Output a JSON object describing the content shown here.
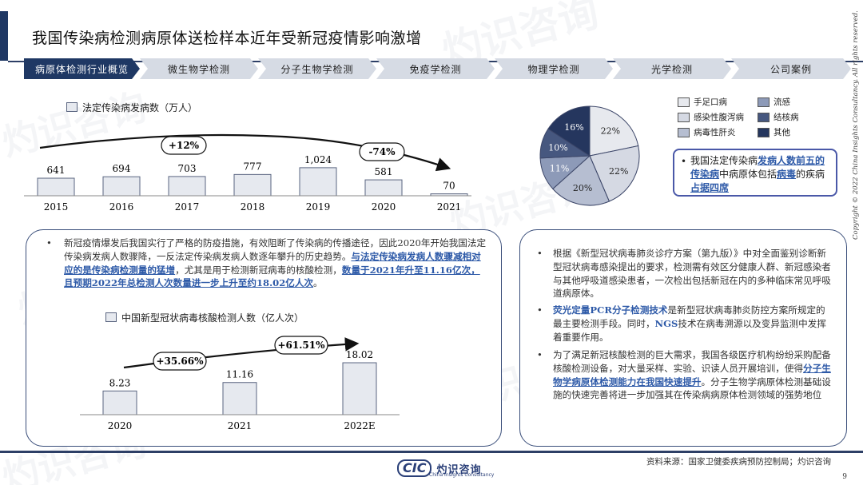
{
  "page": {
    "title": "我国传染病检测病原体送检样本近年受新冠疫情影响激增",
    "source_text": "资料来源：国家卫健委疾病预防控制局；灼识咨询",
    "page_number": "9",
    "copyright": "Copyright © 2022 China Insights Consultancy. All rights reserved.",
    "logo_cic": "CIC",
    "logo_cn": "灼识咨询",
    "logo_en": "China Insights Consultancy",
    "watermark_cn": "灼识咨询",
    "watermark_en": "China Insights Consultancy"
  },
  "tabs": [
    {
      "label": "病原体检测行业概览",
      "active": true
    },
    {
      "label": "微生物学检测",
      "active": false
    },
    {
      "label": "分子生物学检测",
      "active": false
    },
    {
      "label": "免疫学检测",
      "active": false
    },
    {
      "label": "物理学检测",
      "active": false
    },
    {
      "label": "光学检测",
      "active": false
    },
    {
      "label": "公司案例",
      "active": false
    }
  ],
  "colors": {
    "navy": "#1f3864",
    "tab_gray": "#d6dbe4",
    "highlight_blue": "#2e5aa8",
    "bar_fill": "#e6e9ef",
    "panel_border": "#3a4e7a"
  },
  "left_text": {
    "bullet": "•",
    "p1": "新冠疫情爆发后我国实行了严格的防疫措施，有效阻断了传染病的传播途径，因此2020年开始我国法定传染病发病人数骤降，一反法定传染病发病人数逐年攀升的历史趋势。",
    "p2_hl": "与法定传染病发病人数骤减相对应的是传染病检测量的猛增",
    "p2_rest": "，尤其是用于检测新冠病毒的核酸检测，",
    "p2_hl2": "数量于2021年升至11.16亿次，且预期2022年总检测人次数量进一步上升至约18.02亿人次",
    "p2_end": "。"
  },
  "right_text": {
    "b1": "根据《新型冠状病毒肺炎诊疗方案（第九版）》中对全面鉴别诊断新型冠状病毒感染提出的要求，检测需有效区分健康人群、新冠感染者与其他呼吸道感染患者，一次检出包括新冠在内的多种临床常见呼吸道病原体。",
    "b2_hl": "荧光定量PCR分子检测技术",
    "b2_rest": "是新型冠状病毒肺炎防控方案所规定的最主要检测手段。同时，",
    "b2_ngs": "NGS",
    "b2_end": "技术在病毒溯源以及变异监测中发挥着重要作用。",
    "b3_a": "为了满足新冠核酸检测的巨大需求，我国各级医疗机构纷纷采购配备核酸检测设备，对大量采样、实验、识读人员开展培训，使得",
    "b3_hl": "分子生物学病原体检测能力在我国快速提升",
    "b3_b": "。分子生物学病原体检测基础设施的快速完善将进一步加强其在传染病病原体检测领域的强势地位"
  },
  "callout": {
    "pre": "我国法定传染病",
    "hl1": "发病人数前五的传染病",
    "mid": "中病原体包括",
    "hl2": "病毒",
    "mid2": "的疾病",
    "hl3": "占据四席"
  },
  "chart_data": [
    {
      "type": "bar",
      "legend": "法定传染病发病数（万人）",
      "categories": [
        "2015",
        "2016",
        "2017",
        "2018",
        "2019",
        "2020",
        "2021"
      ],
      "values": [
        641,
        694,
        703,
        777,
        1024,
        581,
        70
      ],
      "value_labels": [
        "641",
        "694",
        "703",
        "777",
        "1,024",
        "581",
        "70"
      ],
      "annotations": [
        "+12%",
        "-74%"
      ],
      "ylim": [
        0,
        1100
      ]
    },
    {
      "type": "pie",
      "legend": [
        {
          "name": "手足口病",
          "color": "#e7e9ee"
        },
        {
          "name": "流感",
          "color": "#8d9ab8"
        },
        {
          "name": "感染性腹泻病",
          "color": "#d5d9e3"
        },
        {
          "name": "结核病",
          "color": "#46577f"
        },
        {
          "name": "病毒性肝炎",
          "color": "#b6bed1"
        },
        {
          "name": "其他",
          "color": "#25365e"
        }
      ],
      "values": [
        22,
        22,
        20,
        11,
        10,
        16
      ],
      "value_labels": [
        "22%",
        "22%",
        "20%",
        "11%",
        "10%",
        "16%"
      ],
      "slice_colors": [
        "#e7e9ee",
        "#d5d9e3",
        "#b6bed1",
        "#8d9ab8",
        "#46577f",
        "#25365e"
      ]
    },
    {
      "type": "bar",
      "legend": "中国新型冠状病毒核酸检测人数（亿人次）",
      "categories": [
        "2020",
        "2021",
        "2022E"
      ],
      "values": [
        8.23,
        11.16,
        18.02
      ],
      "value_labels": [
        "8.23",
        "11.16",
        "18.02"
      ],
      "annotations": [
        "+35.66%",
        "+61.51%"
      ],
      "ylim": [
        0,
        20
      ]
    }
  ]
}
